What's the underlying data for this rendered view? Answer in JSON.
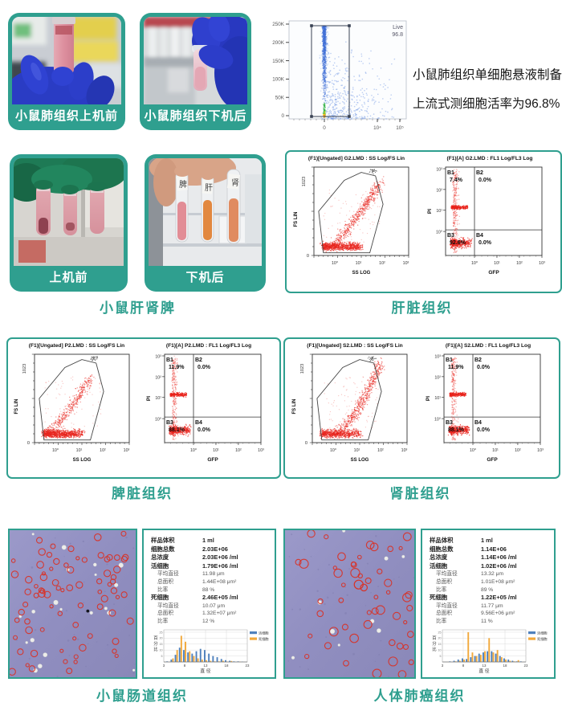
{
  "colors": {
    "accent": "#2f9f8f",
    "scatter_red": "#e8231c",
    "scatter_blue": "#3f6fd8",
    "hist_blue": "#4f81bd",
    "hist_yellow": "#f2a93b"
  },
  "row1": {
    "photo_before": {
      "label": "小鼠肺组织上机前"
    },
    "photo_after": {
      "label": "小鼠肺组织下机后"
    },
    "live_plot": {
      "gate_label": "Live",
      "gate_value": "96.8",
      "y_ticks": [
        "250K",
        "200K",
        "150K",
        "100K",
        "50K",
        "0"
      ],
      "x_ticks": [
        "0",
        "10⁴",
        "10⁵"
      ]
    },
    "note": {
      "line1": "小鼠肺组织单细胞悬液制备",
      "line2": "上流式测细胞活率为96.8%"
    }
  },
  "row2": {
    "photo_before": {
      "label": "上机前"
    },
    "photo_after": {
      "label": "下机后"
    },
    "tube_labels": [
      "脾",
      "肝",
      "肾"
    ],
    "caption": "小鼠肝肾脾"
  },
  "log_ticks": [
    "10⁰",
    "10¹",
    "10²",
    "10³"
  ],
  "panels": [
    {
      "caption": "肝脏组织",
      "left_title": "(F1)[Ungated] G2.LMD : SS Log/FS Lin",
      "right_title": "(F1)[A] G2.LMD : FL1 Log/FL3 Log",
      "left_y_label": "FS LIN",
      "left_y_top": "1023",
      "left_y_bottom": "0",
      "left_x_label": "SS LOG",
      "right_y_label": "PI",
      "right_x_label": "GFP",
      "quads": [
        {
          "name": "B1",
          "pct": "7.4%"
        },
        {
          "name": "B2",
          "pct": "0.0%"
        },
        {
          "name": "B3",
          "pct": "92.6%"
        },
        {
          "name": "B4",
          "pct": "0.0%"
        }
      ]
    },
    {
      "caption": "脾脏组织",
      "left_title": "(F1)[Ungated] P2.LMD : SS Log/FS Lin",
      "right_title": "(F1)[A] P2.LMD : FL1 Log/FL3 Log",
      "left_y_label": "FS LIN",
      "left_y_top": "1023",
      "left_y_bottom": "0",
      "left_x_label": "SS LOG",
      "right_y_label": "PI",
      "right_x_label": "GFP",
      "quads": [
        {
          "name": "B1",
          "pct": "11.9%"
        },
        {
          "name": "B2",
          "pct": "0.0%"
        },
        {
          "name": "B3",
          "pct": "88.1%"
        },
        {
          "name": "B4",
          "pct": "0.0%"
        }
      ]
    },
    {
      "caption": "肾脏组织",
      "left_title": "(F1)[Ungated] S2.LMD : SS Log/FS Lin",
      "right_title": "(F1)[A] S2.LMD : FL1 Log/FL3 Log",
      "left_y_label": "FS LIN",
      "left_y_top": "1023",
      "left_y_bottom": "0",
      "left_x_label": "SS LOG",
      "right_y_label": "PI",
      "right_x_label": "GFP",
      "quads": [
        {
          "name": "B1",
          "pct": "11.9%"
        },
        {
          "name": "B2",
          "pct": "0.0%"
        },
        {
          "name": "B3",
          "pct": "88.1%"
        },
        {
          "name": "B4",
          "pct": "0.0%"
        }
      ]
    }
  ],
  "count_panels": [
    {
      "caption": "小鼠肠道组织",
      "hist_chart": 7,
      "stats": [
        {
          "label": "样品体积",
          "value": "1 ml"
        },
        {
          "label": "细胞总数",
          "value": "2.03E+06"
        },
        {
          "label": "总浓度",
          "value": "2.03E+06 /ml"
        },
        {
          "label": "活细胞",
          "value": "1.79E+06 /ml"
        },
        {
          "label": "平均直径",
          "value": "11.98 μm",
          "indent": true
        },
        {
          "label": "总面积",
          "value": "1.44E+08 μm²",
          "indent": true
        },
        {
          "label": "比率",
          "value": "88 %",
          "indent": true
        },
        {
          "label": "死细胞",
          "value": "2.46E+05 /ml"
        },
        {
          "label": "平均直径",
          "value": "10.07 μm",
          "indent": true
        },
        {
          "label": "总面积",
          "value": "1.32E+07 μm²",
          "indent": true
        },
        {
          "label": "比率",
          "value": "12 %",
          "indent": true
        }
      ]
    },
    {
      "caption": "人体肺癌组织",
      "hist_chart": 8,
      "stats": [
        {
          "label": "样品体积",
          "value": "1 ml"
        },
        {
          "label": "细胞总数",
          "value": "1.14E+06"
        },
        {
          "label": "总浓度",
          "value": "1.14E+06 /ml"
        },
        {
          "label": "活细胞",
          "value": "1.02E+06 /ml"
        },
        {
          "label": "平均直径",
          "value": "13.32 μm",
          "indent": true
        },
        {
          "label": "总面积",
          "value": "1.01E+08 μm²",
          "indent": true
        },
        {
          "label": "比率",
          "value": "89 %",
          "indent": true
        },
        {
          "label": "死细胞",
          "value": "1.22E+05 /ml"
        },
        {
          "label": "平均直径",
          "value": "11.77 μm",
          "indent": true
        },
        {
          "label": "总面积",
          "value": "9.56E+06 μm²",
          "indent": true
        },
        {
          "label": "比率",
          "value": "11 %",
          "indent": true
        }
      ]
    }
  ],
  "chart_data": [
    {
      "type": "scatter",
      "title": "Live viability gate",
      "x_ticks": [
        "0",
        "10⁴",
        "10⁵"
      ],
      "y_ticks": [
        "0",
        "50K",
        "100K",
        "150K",
        "200K",
        "250K"
      ],
      "gate": {
        "label": "Live",
        "pct": 96.8
      }
    },
    {
      "type": "scatter",
      "title": "(F1)[Ungated] G2.LMD : SS Log/FS Lin",
      "xlabel": "SS LOG",
      "ylabel": "FS LIN",
      "ylim": [
        0,
        1023
      ]
    },
    {
      "type": "scatter",
      "title": "(F1)[A] G2.LMD : FL1 Log/FL3 Log",
      "xlabel": "GFP",
      "ylabel": "PI",
      "quadrants": {
        "B1": 7.4,
        "B2": 0.0,
        "B3": 92.6,
        "B4": 0.0
      }
    },
    {
      "type": "scatter",
      "title": "(F1)[Ungated] P2.LMD : SS Log/FS Lin",
      "xlabel": "SS LOG",
      "ylabel": "FS LIN",
      "ylim": [
        0,
        1023
      ]
    },
    {
      "type": "scatter",
      "title": "(F1)[A] P2.LMD : FL1 Log/FL3 Log",
      "xlabel": "GFP",
      "ylabel": "PI",
      "quadrants": {
        "B1": 11.9,
        "B2": 0.0,
        "B3": 88.1,
        "B4": 0.0
      }
    },
    {
      "type": "scatter",
      "title": "(F1)[Ungated] S2.LMD : SS Log/FS Lin",
      "xlabel": "SS LOG",
      "ylabel": "FS LIN",
      "ylim": [
        0,
        1023
      ]
    },
    {
      "type": "scatter",
      "title": "(F1)[A] S2.LMD : FL1 Log/FL3 Log",
      "xlabel": "GFP",
      "ylabel": "PI",
      "quadrants": {
        "B1": 11.9,
        "B2": 0.0,
        "B3": 88.1,
        "B4": 0.0
      }
    },
    {
      "type": "bar",
      "title": "小鼠肠道组织 直径分布",
      "xlabel": "直径",
      "ylabel": "百分比",
      "ylim": [
        0,
        25
      ],
      "x_ticks": [
        3,
        8,
        13,
        18,
        23
      ],
      "x": [
        4,
        5,
        6,
        7,
        8,
        9,
        10,
        11,
        12,
        13,
        14,
        15,
        16,
        17,
        18,
        19,
        20,
        21,
        22
      ],
      "series": [
        {
          "name": "活细胞",
          "values": [
            0.5,
            2,
            6,
            12,
            10,
            8,
            7,
            9,
            11,
            10,
            7,
            5,
            4,
            2.5,
            1.5,
            1,
            0.5,
            0.5,
            0.3
          ]
        },
        {
          "name": "死细胞",
          "values": [
            0,
            3,
            10,
            22,
            17,
            9,
            5,
            3,
            2,
            1.5,
            1,
            0.5,
            0.5,
            1,
            0.3,
            0.8,
            0,
            0.3,
            0
          ]
        }
      ]
    },
    {
      "type": "bar",
      "title": "人体肺癌组织 直径分布",
      "xlabel": "直径",
      "ylabel": "百分比",
      "ylim": [
        0,
        25
      ],
      "x_ticks": [
        3,
        8,
        13,
        18,
        23
      ],
      "x": [
        4,
        5,
        6,
        7,
        8,
        9,
        10,
        11,
        12,
        13,
        14,
        15,
        16,
        17,
        18,
        19,
        20,
        21,
        22
      ],
      "series": [
        {
          "name": "活细胞",
          "values": [
            0,
            0.5,
            1,
            2,
            3,
            2.5,
            4,
            5,
            7,
            8,
            9,
            9,
            7,
            5,
            3,
            2,
            1,
            0.5,
            0.5
          ]
        },
        {
          "name": "死细胞",
          "values": [
            0,
            0,
            0.5,
            1,
            2,
            25,
            8,
            5,
            6,
            9,
            20,
            8,
            10,
            4,
            2,
            1,
            0.5,
            1.5,
            0
          ]
        }
      ]
    }
  ]
}
